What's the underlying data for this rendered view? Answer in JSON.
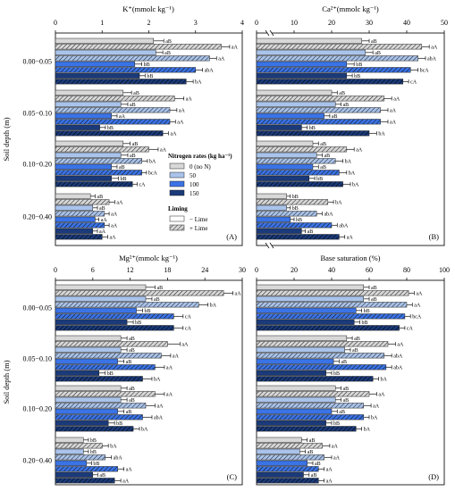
{
  "chart_data": [
    {
      "id": "A",
      "type": "bar",
      "orientation": "horizontal",
      "title": "K⁺(mmolc kg⁻¹)",
      "xlim": [
        0,
        4
      ],
      "xticks": [
        0,
        1,
        2,
        3,
        4
      ],
      "ylabel": "Soil depth (m)",
      "panel_label": "(A)",
      "categories": [
        "0.00−0.05",
        "0.05−0.10",
        "0.10−0.20",
        "0.20−0.40"
      ],
      "series": [
        {
          "nitrogen": "0 (no N)",
          "liming": "− Lime",
          "values": [
            2.1,
            1.45,
            1.45,
            0.75
          ],
          "errors": [
            0.22,
            0.18,
            0.15,
            0.1
          ],
          "labels": [
            "aB",
            "aB",
            "aB",
            "aB"
          ]
        },
        {
          "nitrogen": "0 (no N)",
          "liming": "+ Lime",
          "values": [
            3.55,
            2.55,
            2.0,
            1.15
          ],
          "errors": [
            0.18,
            0.2,
            0.2,
            0.12
          ],
          "labels": [
            "aA",
            "aA",
            "aA",
            "aA"
          ]
        },
        {
          "nitrogen": "50",
          "liming": "− Lime",
          "values": [
            2.15,
            1.4,
            1.4,
            0.8
          ],
          "errors": [
            0.15,
            0.15,
            0.15,
            0.1
          ],
          "labels": [
            "aB",
            "aB",
            "aB",
            "aB"
          ]
        },
        {
          "nitrogen": "50",
          "liming": "+ Lime",
          "values": [
            3.3,
            2.45,
            1.85,
            1.05
          ],
          "errors": [
            0.15,
            0.15,
            0.12,
            0.1
          ],
          "labels": [
            "aA",
            "aA",
            "bA",
            "aA"
          ]
        },
        {
          "nitrogen": "100",
          "liming": "− Lime",
          "values": [
            1.7,
            1.2,
            1.2,
            0.85
          ],
          "errors": [
            0.15,
            0.12,
            0.12,
            0.08
          ],
          "labels": [
            "bB",
            "aA",
            "aB",
            "aA"
          ]
        },
        {
          "nitrogen": "100",
          "liming": "+ Lime",
          "values": [
            3.0,
            2.45,
            1.85,
            1.05
          ],
          "errors": [
            0.15,
            0.12,
            0.1,
            0.1
          ],
          "labels": [
            "abA",
            "aA",
            "bcA",
            "aA"
          ]
        },
        {
          "nitrogen": "150",
          "liming": "− Lime",
          "values": [
            1.8,
            0.95,
            1.2,
            0.8
          ],
          "errors": [
            0.12,
            0.12,
            0.15,
            0.1
          ],
          "labels": [
            "bB",
            "bB",
            "bB",
            "aA"
          ]
        },
        {
          "nitrogen": "150",
          "liming": "+ Lime",
          "values": [
            2.8,
            2.3,
            1.65,
            1.0
          ],
          "errors": [
            0.15,
            0.12,
            0.1,
            0.12
          ],
          "labels": [
            "bA",
            "aA",
            "cA",
            "aA"
          ]
        }
      ]
    },
    {
      "id": "B",
      "type": "bar",
      "orientation": "horizontal",
      "title": "Ca²⁺(mmolc kg⁻¹)",
      "xlim": [
        0,
        50
      ],
      "xticks": [
        0,
        10,
        20,
        30,
        40,
        50
      ],
      "axis_break": true,
      "panel_label": "(B)",
      "categories": [
        "0.00−0.05",
        "0.05−0.10",
        "0.10−0.20",
        "0.20−0.40"
      ],
      "series": [
        {
          "nitrogen": "0 (no N)",
          "liming": "− Lime",
          "values": [
            28,
            20,
            15,
            8
          ],
          "errors": [
            2.0,
            1.5,
            1.5,
            1.0
          ],
          "labels": [
            "aB",
            "aB",
            "aB",
            "bB"
          ]
        },
        {
          "nitrogen": "0 (no N)",
          "liming": "+ Lime",
          "values": [
            44,
            34,
            24,
            19
          ],
          "errors": [
            2.0,
            2.0,
            2.0,
            1.5
          ],
          "labels": [
            "aA",
            "aA",
            "aA",
            "bA"
          ]
        },
        {
          "nitrogen": "50",
          "liming": "− Lime",
          "values": [
            29,
            21,
            16,
            8
          ],
          "errors": [
            2.0,
            1.5,
            1.5,
            1.0
          ],
          "labels": [
            "aB",
            "aB",
            "aB",
            "bB"
          ]
        },
        {
          "nitrogen": "50",
          "liming": "+ Lime",
          "values": [
            43,
            33,
            21,
            16
          ],
          "errors": [
            2.0,
            2.0,
            2.0,
            1.5
          ],
          "labels": [
            "abA",
            "aA",
            "bA",
            "abA"
          ]
        },
        {
          "nitrogen": "100",
          "liming": "− Lime",
          "values": [
            24,
            18,
            15,
            9
          ],
          "errors": [
            2.0,
            1.5,
            1.5,
            1.0
          ],
          "labels": [
            "bB",
            "aB",
            "aB",
            "bB"
          ]
        },
        {
          "nitrogen": "100",
          "liming": "+ Lime",
          "values": [
            41,
            33,
            22,
            20
          ],
          "errors": [
            2.0,
            2.0,
            2.0,
            1.5
          ],
          "labels": [
            "bcA",
            "aA",
            "bA",
            "abA"
          ]
        },
        {
          "nitrogen": "150",
          "liming": "− Lime",
          "values": [
            24,
            12,
            14,
            12
          ],
          "errors": [
            1.5,
            1.5,
            1.5,
            1.0
          ],
          "labels": [
            "bB",
            "bB",
            "bB",
            "aB"
          ]
        },
        {
          "nitrogen": "150",
          "liming": "+ Lime",
          "values": [
            39,
            30,
            23,
            22
          ],
          "errors": [
            1.5,
            2.0,
            2.0,
            1.5
          ],
          "labels": [
            "cA",
            "bA",
            "bA",
            "aA"
          ]
        }
      ]
    },
    {
      "id": "C",
      "type": "bar",
      "orientation": "horizontal",
      "title": "Mg²⁺(mmolc kg⁻¹)",
      "xlim": [
        0,
        30
      ],
      "xticks": [
        0,
        6,
        12,
        18,
        24,
        30
      ],
      "ylabel": "Soil depth (m)",
      "panel_label": "(C)",
      "categories": [
        "0.00−0.05",
        "0.05−0.10",
        "0.10−0.20",
        "0.20−0.40"
      ],
      "series": [
        {
          "nitrogen": "0 (no N)",
          "liming": "− Lime",
          "values": [
            14.5,
            10.5,
            10.5,
            4.5
          ],
          "errors": [
            1.5,
            1.0,
            1.0,
            0.8
          ],
          "labels": [
            "aB",
            "aB",
            "aB",
            "bB"
          ]
        },
        {
          "nitrogen": "0 (no N)",
          "liming": "+ Lime",
          "values": [
            27,
            18,
            16,
            7.5
          ],
          "errors": [
            1.5,
            2.0,
            1.5,
            1.0
          ],
          "labels": [
            "aA",
            "aA",
            "aA",
            "bA"
          ]
        },
        {
          "nitrogen": "50",
          "liming": "− Lime",
          "values": [
            14.5,
            10.5,
            10.5,
            4.5
          ],
          "errors": [
            1.0,
            1.0,
            1.0,
            0.8
          ],
          "labels": [
            "aB",
            "aB",
            "aB",
            "bB"
          ]
        },
        {
          "nitrogen": "50",
          "liming": "+ Lime",
          "values": [
            23,
            17,
            14.5,
            8.0
          ],
          "errors": [
            1.5,
            1.5,
            1.5,
            1.0
          ],
          "labels": [
            "bA",
            "aA",
            "aA",
            "abA"
          ]
        },
        {
          "nitrogen": "100",
          "liming": "− Lime",
          "values": [
            13,
            10,
            10,
            5.0
          ],
          "errors": [
            1.0,
            1.0,
            1.0,
            0.8
          ],
          "labels": [
            "bB",
            "aB",
            "aB",
            "bB"
          ]
        },
        {
          "nitrogen": "100",
          "liming": "+ Lime",
          "values": [
            19,
            16,
            14,
            10
          ],
          "errors": [
            1.5,
            1.5,
            1.5,
            1.0
          ],
          "labels": [
            "cA",
            "aA",
            "abA",
            "aA"
          ]
        },
        {
          "nitrogen": "150",
          "liming": "− Lime",
          "values": [
            11.5,
            7.0,
            8.5,
            6.0
          ],
          "errors": [
            1.0,
            1.0,
            1.0,
            0.8
          ],
          "labels": [
            "bB",
            "bB",
            "bB",
            "aB"
          ]
        },
        {
          "nitrogen": "150",
          "liming": "+ Lime",
          "values": [
            19,
            14,
            12.5,
            9.5
          ],
          "errors": [
            1.5,
            1.5,
            1.0,
            1.0
          ],
          "labels": [
            "cA",
            "bA",
            "bA",
            "aA"
          ]
        }
      ]
    },
    {
      "id": "D",
      "type": "bar",
      "orientation": "horizontal",
      "title": "Base saturation (%)",
      "xlim": [
        0,
        100
      ],
      "xticks": [
        0,
        20,
        40,
        60,
        80,
        100
      ],
      "panel_label": "(D)",
      "categories": [
        "0.00−0.05",
        "0.05−0.10",
        "0.10−0.20",
        "0.20−0.40"
      ],
      "series": [
        {
          "nitrogen": "0 (no N)",
          "liming": "− Lime",
          "values": [
            57,
            48,
            42,
            24
          ],
          "errors": [
            3,
            3,
            3,
            3
          ],
          "labels": [
            "aB",
            "aB",
            "aB",
            "aB"
          ]
        },
        {
          "nitrogen": "0 (no N)",
          "liming": "+ Lime",
          "values": [
            81,
            70,
            60,
            35
          ],
          "errors": [
            3,
            4,
            4,
            4
          ],
          "labels": [
            "aA",
            "aA",
            "aA",
            "aA"
          ]
        },
        {
          "nitrogen": "50",
          "liming": "− Lime",
          "values": [
            57,
            47,
            42,
            23
          ],
          "errors": [
            3,
            3,
            3,
            3
          ],
          "labels": [
            "aB",
            "aB",
            "aB",
            "aB"
          ]
        },
        {
          "nitrogen": "50",
          "liming": "+ Lime",
          "values": [
            80,
            68,
            57,
            36
          ],
          "errors": [
            3,
            4,
            4,
            4
          ],
          "labels": [
            "aA",
            "abA",
            "aA",
            "aA"
          ]
        },
        {
          "nitrogen": "100",
          "liming": "− Lime",
          "values": [
            53,
            41,
            40,
            27
          ],
          "errors": [
            3,
            3,
            3,
            3
          ],
          "labels": [
            "bB",
            "aB",
            "aB",
            "aB"
          ]
        },
        {
          "nitrogen": "100",
          "liming": "+ Lime",
          "values": [
            79,
            69,
            57,
            33
          ],
          "errors": [
            3,
            3,
            3,
            3
          ],
          "labels": [
            "bcA",
            "abA",
            "bA",
            "aA"
          ]
        },
        {
          "nitrogen": "150",
          "liming": "− Lime",
          "values": [
            52,
            37,
            37,
            25
          ],
          "errors": [
            3,
            3,
            3,
            3
          ],
          "labels": [
            "bB",
            "bB",
            "bB",
            "aB"
          ]
        },
        {
          "nitrogen": "150",
          "liming": "+ Lime",
          "values": [
            76,
            62,
            53,
            33
          ],
          "errors": [
            3,
            3,
            3,
            3
          ],
          "labels": [
            "cA",
            "bA",
            "bA",
            "aA"
          ]
        }
      ]
    }
  ],
  "legend": {
    "nitrogen_title": "Nitrogen rates (kg ha⁻¹)",
    "nitrogen_items": [
      {
        "label": "0 (no N)",
        "color": "#d8d8d8"
      },
      {
        "label": "50",
        "color": "#a9c3eb"
      },
      {
        "label": "100",
        "color": "#3a73e6"
      },
      {
        "label": "150",
        "color": "#1a3a7a"
      }
    ],
    "liming_title": "Liming",
    "liming_items": [
      {
        "label": "− Lime",
        "pattern": "solid"
      },
      {
        "label": "+ Lime",
        "pattern": "hatched"
      }
    ]
  },
  "colors": {
    "n0": "#d8d8d8",
    "n50": "#a9c3eb",
    "n100": "#3a73e6",
    "n150": "#1a3a7a"
  }
}
